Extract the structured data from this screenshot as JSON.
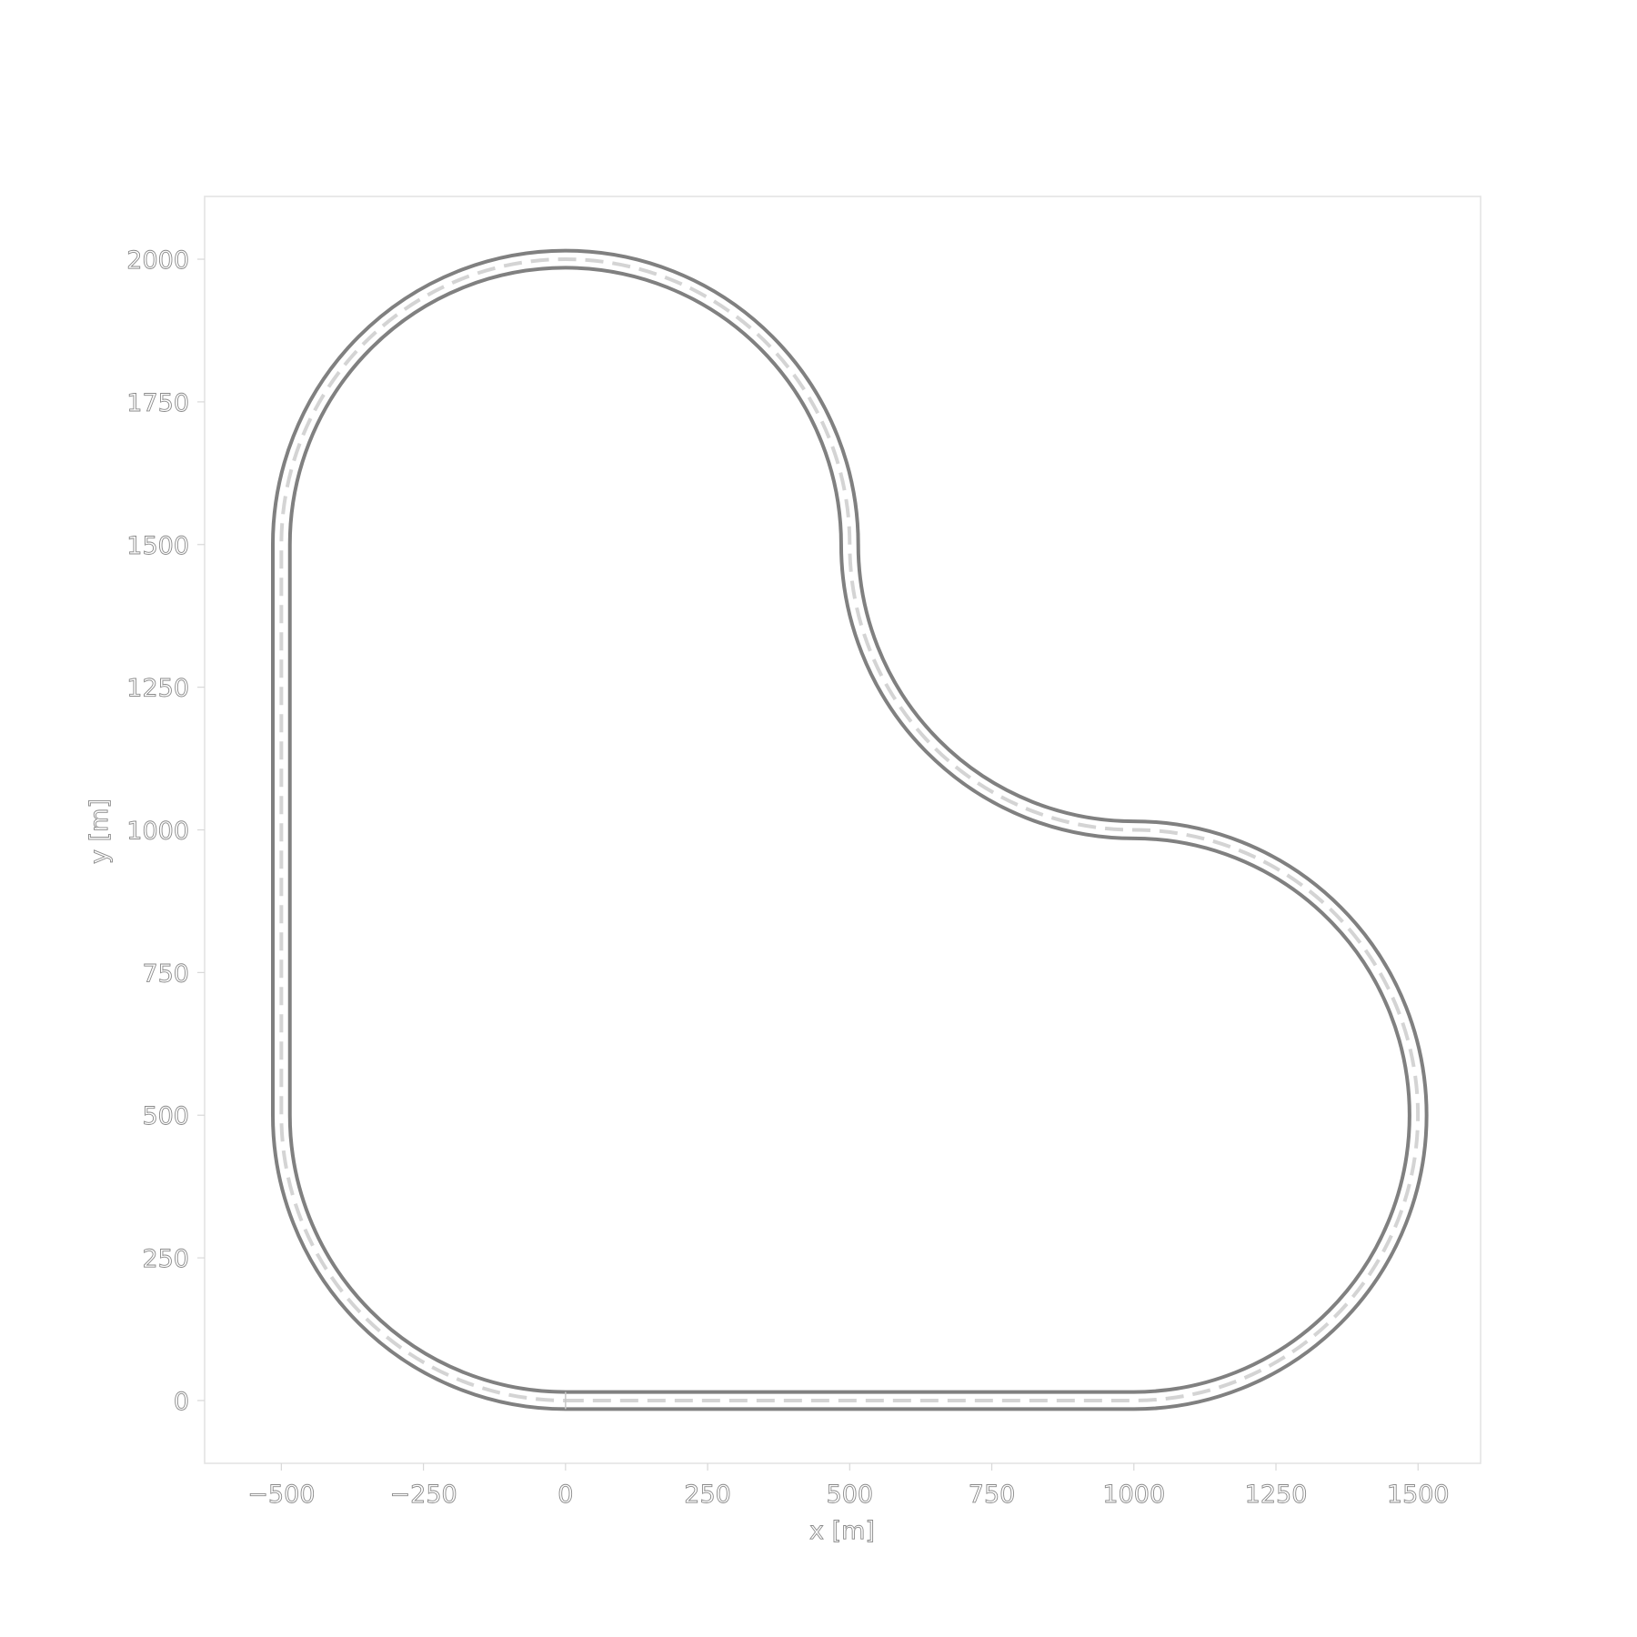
{
  "chart_data": {
    "type": "line",
    "title": "",
    "xlabel": "x [m]",
    "ylabel": "y [m]",
    "xlim": [
      -635,
      1610
    ],
    "ylim": [
      -110,
      2110
    ],
    "xticks": [
      -500,
      -250,
      0,
      250,
      500,
      750,
      1000,
      1250,
      1500
    ],
    "yticks": [
      0,
      250,
      500,
      750,
      1000,
      1250,
      1500,
      1750,
      2000
    ],
    "xtick_labels": [
      "−500",
      "−250",
      "0",
      "250",
      "500",
      "750",
      "1000",
      "1250",
      "1500"
    ],
    "ytick_labels": [
      "0",
      "250",
      "500",
      "750",
      "1000",
      "1250",
      "1500",
      "1750",
      "2000"
    ],
    "grid": false,
    "track": {
      "width": 30,
      "segments": [
        {
          "type": "straight",
          "from": [
            0,
            0
          ],
          "to": [
            1000,
            0
          ]
        },
        {
          "type": "arc",
          "center": [
            1000,
            500
          ],
          "radius": 500,
          "from_deg": -90,
          "to_deg": 90,
          "direction": "ccw"
        },
        {
          "type": "arc",
          "center": [
            1000,
            1500
          ],
          "radius": 500,
          "from_deg": -90,
          "to_deg": -180,
          "direction": "cw"
        },
        {
          "type": "arc",
          "center": [
            0,
            1500
          ],
          "radius": 500,
          "from_deg": 0,
          "to_deg": 180,
          "direction": "ccw"
        },
        {
          "type": "straight",
          "from": [
            -500,
            1500
          ],
          "to": [
            -500,
            500
          ]
        },
        {
          "type": "arc",
          "center": [
            0,
            500
          ],
          "radius": 500,
          "from_deg": 180,
          "to_deg": 270,
          "direction": "ccw"
        }
      ]
    },
    "series": [
      {
        "name": "outer edge",
        "style": "solid",
        "color": "#808080",
        "offset": 15
      },
      {
        "name": "inner edge",
        "style": "solid",
        "color": "#808080",
        "offset": -15
      },
      {
        "name": "centerline",
        "style": "dashed",
        "color": "#d4d4d4",
        "offset": 0
      }
    ]
  }
}
